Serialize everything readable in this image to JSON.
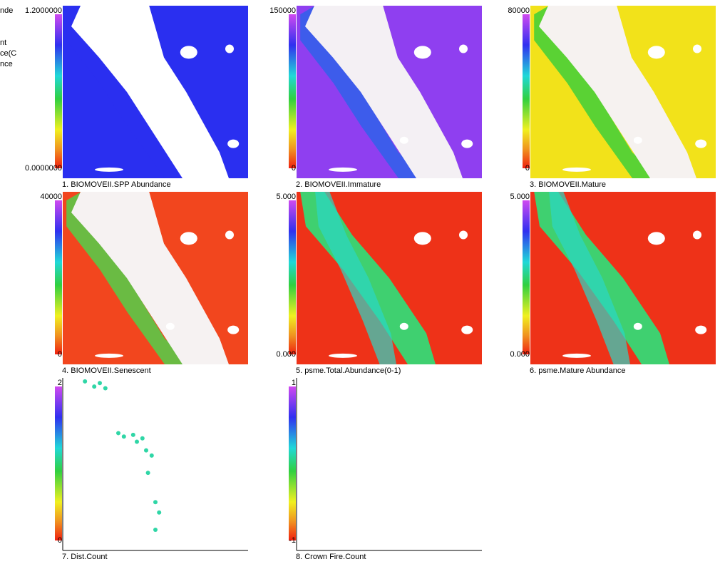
{
  "clipped_legend": [
    "nde",
    "nt",
    "ce(C",
    "nce"
  ],
  "panels": [
    {
      "caption": "1. BIOMOVEII.SPP Abundance",
      "max_label": "1.2000000",
      "min_label": "0.0000000",
      "map_color": "#2a2ff0",
      "band_color": "#ffffff",
      "edge_color": "#2a2ff0"
    },
    {
      "caption": "2. BIOMOVEII.Immature",
      "max_label": "150000",
      "min_label": "0",
      "map_color": "#8f3ff0",
      "band_color": "#f4f0f4",
      "edge_color": "#2f62ea"
    },
    {
      "caption": "3. BIOMOVEII.Mature",
      "max_label": "80000",
      "min_label": "0",
      "map_color": "#f2e21a",
      "band_color": "#f6f2f0",
      "edge_color": "#3fcf3a"
    },
    {
      "caption": "4. BIOMOVEII.Senescent",
      "max_label": "40000",
      "min_label": "0",
      "map_color": "#f2461e",
      "band_color": "#f6f2f2",
      "edge_color": "#52d04a"
    },
    {
      "caption": "5. psme.Total.Abundance(0-1)",
      "max_label": "5.000",
      "min_label": "0.000",
      "map_color": "#ee3218",
      "band_color": "#3fd070",
      "edge_color": "#2bd7c6"
    },
    {
      "caption": "6. psme.Mature Abundance",
      "max_label": "5.000",
      "min_label": "0.000",
      "map_color": "#ee3218",
      "band_color": "#3fd070",
      "edge_color": "#2bd7c6"
    },
    {
      "caption": "7. Dist.Count",
      "max_label": "2",
      "min_label": "0",
      "map_color": "#ffffff",
      "band_color": "#ffffff",
      "edge_color": "#2fd6a6"
    },
    {
      "caption": "8. Crown Fire.Count",
      "max_label": "1",
      "min_label": "-1",
      "map_color": "#ffffff",
      "band_color": "#ffffff",
      "edge_color": "#ffffff"
    }
  ]
}
